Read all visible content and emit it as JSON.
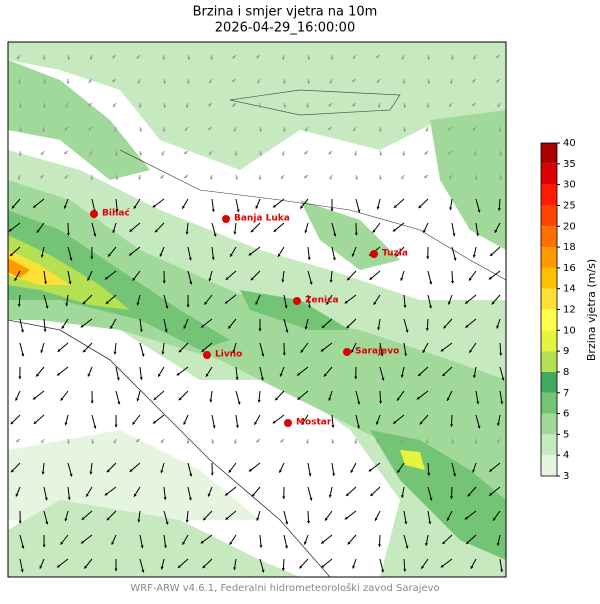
{
  "title": "Brzina i smjer vjetra na 10m",
  "subtitle": "2026-04-29_16:00:00",
  "cities": [
    "Bihać",
    "Banja Luka",
    "Tuzla",
    "Zenica",
    "Livno",
    "Sarajevo",
    "Mostar"
  ],
  "colorbar": {
    "label": "Brzina vjetra (m/s)",
    "ticks": [
      3,
      4,
      5,
      6,
      7,
      8,
      9,
      10,
      12,
      14,
      16,
      18,
      20,
      25,
      30,
      35,
      40
    ],
    "colors": [
      "#e5f5e0",
      "#c7e9c0",
      "#a1d99b",
      "#74c476",
      "#41ab5d",
      "#b5e051",
      "#e6f53c",
      "#ffff4d",
      "#ffe135",
      "#ffc000",
      "#ff9900",
      "#ff7000",
      "#ff4500",
      "#ff1a00",
      "#dd0000",
      "#aa0000"
    ]
  },
  "footer": "WRF-ARW v4.6.1, Federalni hidrometeorološki zavod Sarajevo"
}
